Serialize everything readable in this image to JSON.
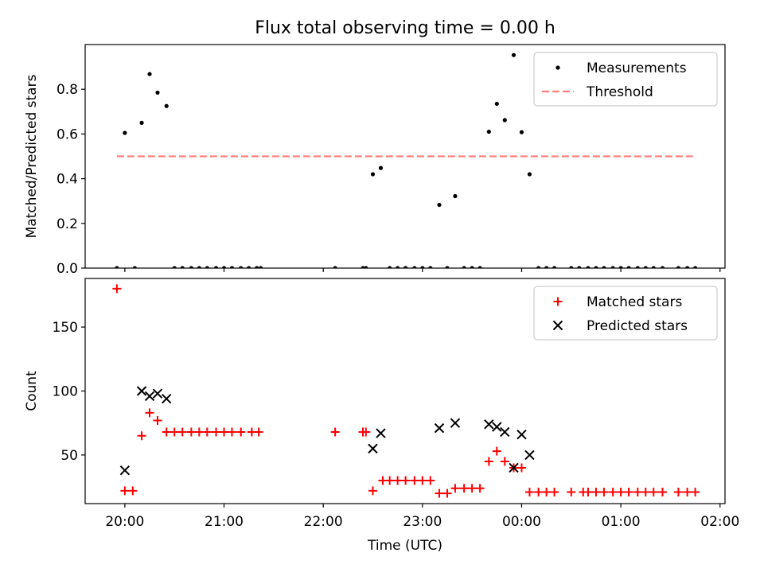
{
  "figure": {
    "title": "Flux total observing time = 0.00 h"
  },
  "chart_data": [
    {
      "id": "top",
      "type": "scatter",
      "ylabel": "Matched/Predicted stars",
      "xlabel": "",
      "xlim_hours": [
        19.6,
        26.05
      ],
      "ylim": [
        0,
        1.0
      ],
      "yticks": [
        0.0,
        0.2,
        0.4,
        0.6,
        0.8
      ],
      "ytick_labels": [
        "0.0",
        "0.2",
        "0.4",
        "0.6",
        "0.8"
      ],
      "xticks_hours": [
        20,
        21,
        22,
        23,
        24,
        25,
        26
      ],
      "xtick_labels": [
        "20:00",
        "21:00",
        "22:00",
        "23:00",
        "00:00",
        "01:00",
        "02:00"
      ],
      "show_xtick_labels": false,
      "legend": {
        "position": "upper right",
        "entries": [
          "Measurements",
          "Threshold"
        ]
      },
      "threshold": {
        "name": "Threshold",
        "value": 0.5,
        "x": [
          19.92,
          25.75
        ],
        "color": "#ff7f7f"
      },
      "series": [
        {
          "name": "Measurements",
          "marker": "dot",
          "color": "#000000",
          "x": [
            19.92,
            20.0,
            20.1,
            20.17,
            20.25,
            20.33,
            20.42,
            20.5,
            20.58,
            20.67,
            20.75,
            20.83,
            20.92,
            21.0,
            21.08,
            21.17,
            21.25,
            21.33,
            21.37,
            22.12,
            22.4,
            22.43,
            22.5,
            22.58,
            22.67,
            22.75,
            22.83,
            22.92,
            23.0,
            23.08,
            23.17,
            23.25,
            23.33,
            23.42,
            23.5,
            23.58,
            23.67,
            23.75,
            23.83,
            23.92,
            24.0,
            24.08,
            24.17,
            24.25,
            24.33,
            24.5,
            24.58,
            24.67,
            24.75,
            24.83,
            24.92,
            25.0,
            25.08,
            25.17,
            25.25,
            25.33,
            25.42,
            25.58,
            25.67,
            25.75
          ],
          "y": [
            0.0,
            0.605,
            0.0,
            0.65,
            0.868,
            0.785,
            0.725,
            0.0,
            0.0,
            0.0,
            0.0,
            0.0,
            0.0,
            0.0,
            0.0,
            0.0,
            0.0,
            0.0,
            0.0,
            0.0,
            0.0,
            0.0,
            0.42,
            0.448,
            0.0,
            0.0,
            0.0,
            0.0,
            0.0,
            0.0,
            0.283,
            0.0,
            0.322,
            0.0,
            0.0,
            0.0,
            0.61,
            0.735,
            0.662,
            0.953,
            0.608,
            0.42,
            0.0,
            0.0,
            0.0,
            0.0,
            0.0,
            0.0,
            0.0,
            0.0,
            0.0,
            0.0,
            0.0,
            0.0,
            0.0,
            0.0,
            0.0,
            0.0,
            0.0,
            0.0
          ]
        }
      ]
    },
    {
      "id": "bottom",
      "type": "scatter",
      "ylabel": "Count",
      "xlabel": "Time (UTC)",
      "xlim_hours": [
        19.6,
        26.05
      ],
      "ylim": [
        12,
        188
      ],
      "yticks": [
        50,
        100,
        150
      ],
      "ytick_labels": [
        "50",
        "100",
        "150"
      ],
      "xticks_hours": [
        20,
        21,
        22,
        23,
        24,
        25,
        26
      ],
      "xtick_labels": [
        "20:00",
        "21:00",
        "22:00",
        "23:00",
        "00:00",
        "01:00",
        "02:00"
      ],
      "show_xtick_labels": true,
      "legend": {
        "position": "upper right",
        "entries": [
          "Matched stars",
          "Predicted stars"
        ]
      },
      "series": [
        {
          "name": "Matched stars",
          "marker": "plus",
          "color": "#ff0000",
          "x": [
            19.92,
            20.0,
            20.08,
            20.17,
            20.25,
            20.33,
            20.42,
            20.5,
            20.58,
            20.67,
            20.75,
            20.83,
            20.92,
            21.0,
            21.08,
            21.17,
            21.28,
            21.35,
            22.12,
            22.4,
            22.43,
            22.5,
            22.6,
            22.67,
            22.75,
            22.83,
            22.92,
            23.0,
            23.08,
            23.17,
            23.25,
            23.33,
            23.42,
            23.5,
            23.58,
            23.67,
            23.75,
            23.83,
            23.92,
            24.0,
            24.08,
            24.17,
            24.25,
            24.33,
            24.5,
            24.62,
            24.67,
            24.75,
            24.83,
            24.92,
            25.0,
            25.08,
            25.17,
            25.25,
            25.33,
            25.42,
            25.58,
            25.67,
            25.75
          ],
          "y": [
            180,
            22,
            22,
            65,
            83,
            77,
            68,
            68,
            68,
            68,
            68,
            68,
            68,
            68,
            68,
            68,
            68,
            68,
            68,
            68,
            68,
            22,
            30,
            30,
            30,
            30,
            30,
            30,
            30,
            20,
            20,
            24,
            24,
            24,
            24,
            45,
            53,
            45,
            40,
            40,
            21,
            21,
            21,
            21,
            21,
            21,
            21,
            21,
            21,
            21,
            21,
            21,
            21,
            21,
            21,
            21,
            21,
            21,
            21
          ]
        },
        {
          "name": "Predicted stars",
          "marker": "x",
          "color": "#000000",
          "x": [
            20.0,
            20.17,
            20.25,
            20.33,
            20.42,
            22.5,
            22.58,
            23.17,
            23.33,
            23.67,
            23.75,
            23.83,
            23.92,
            24.0,
            24.08
          ],
          "y": [
            38,
            100,
            96,
            98,
            94,
            55,
            67,
            71,
            75,
            74,
            72,
            68,
            40,
            66,
            50
          ]
        }
      ]
    }
  ]
}
